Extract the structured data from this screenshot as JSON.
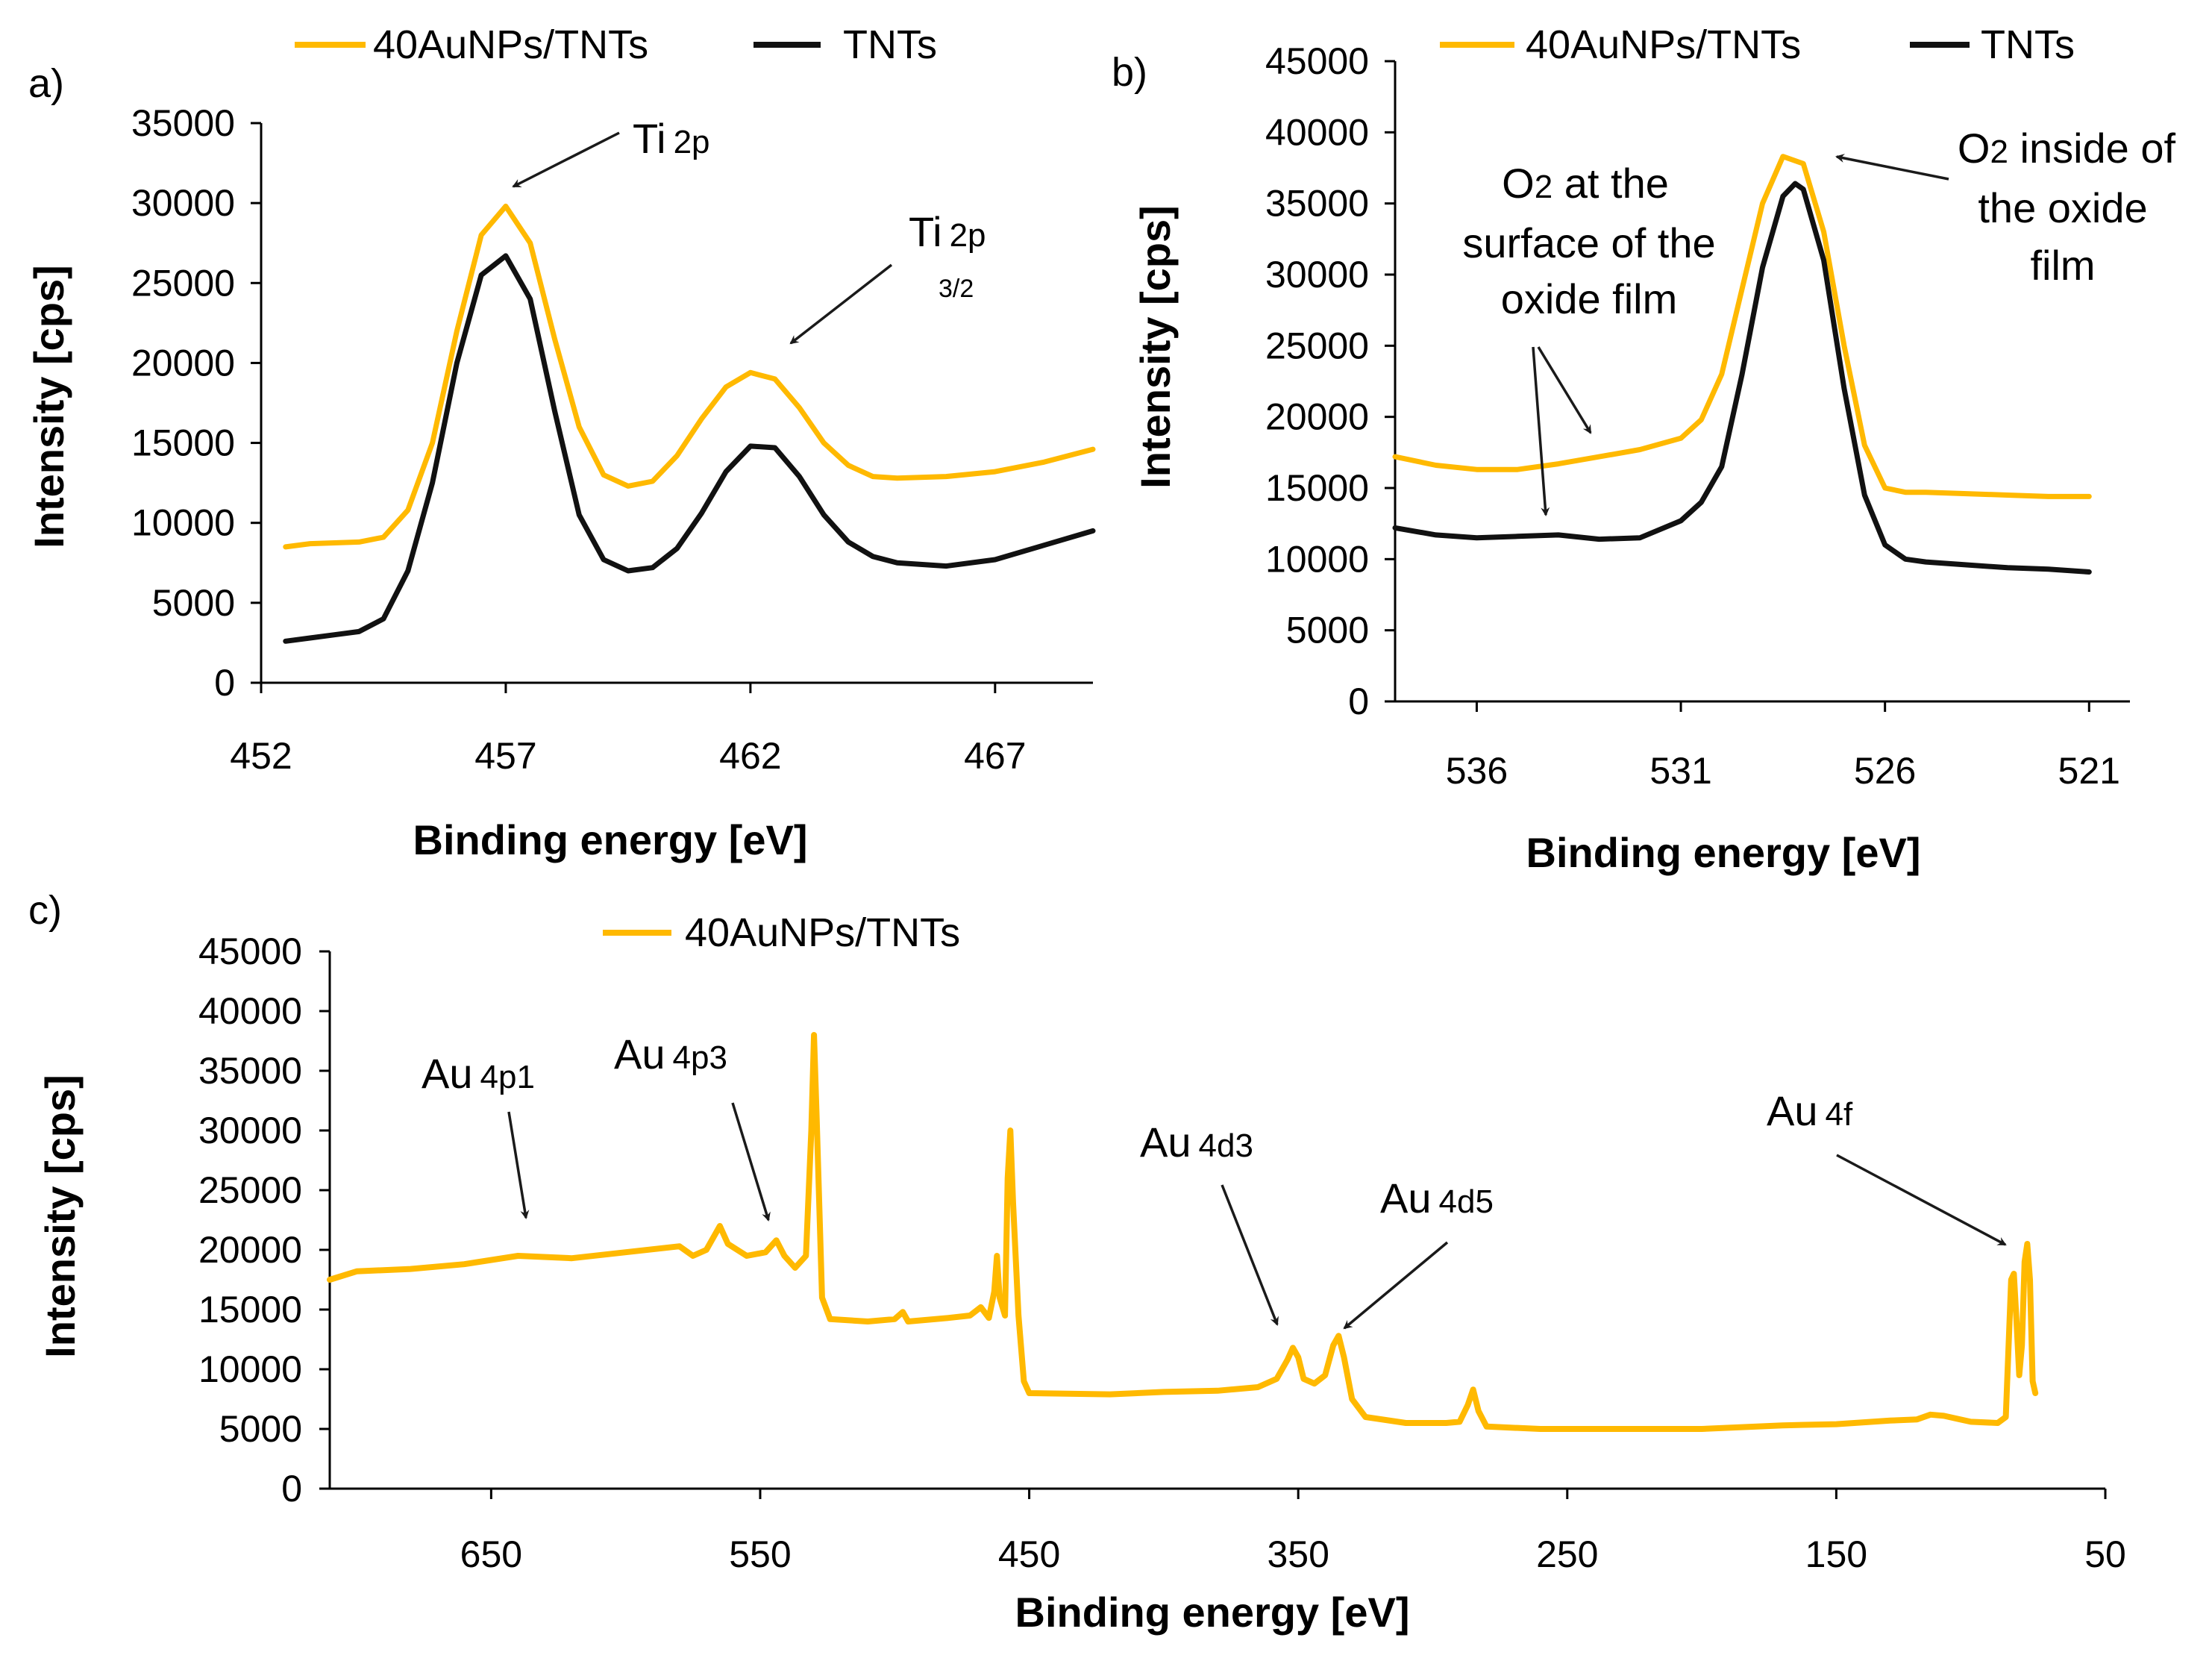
{
  "chart_data": [
    {
      "id": "a",
      "type": "line",
      "panel_label": "a)",
      "xlabel": "Binding energy [eV]",
      "ylabel": "Intensity [cps]",
      "xlim": [
        452,
        469
      ],
      "ylim": [
        0,
        35000
      ],
      "x_ticks": [
        452,
        457,
        462,
        467
      ],
      "y_ticks": [
        0,
        5000,
        10000,
        15000,
        20000,
        25000,
        30000,
        35000
      ],
      "legend": [
        "40AuNPs/TNTs",
        "TNTs"
      ],
      "colors": {
        "40AuNPs/TNTs": "#FFB900",
        "TNTs": "#111111"
      },
      "series": [
        {
          "name": "40AuNPs/TNTs",
          "points": [
            [
              452.5,
              8500
            ],
            [
              453,
              8700
            ],
            [
              454,
              8800
            ],
            [
              454.5,
              9100
            ],
            [
              455,
              10800
            ],
            [
              455.5,
              15000
            ],
            [
              456,
              22000
            ],
            [
              456.5,
              28000
            ],
            [
              457,
              29800
            ],
            [
              457.5,
              27500
            ],
            [
              458,
              21500
            ],
            [
              458.5,
              16000
            ],
            [
              459,
              13000
            ],
            [
              459.5,
              12300
            ],
            [
              460,
              12600
            ],
            [
              460.5,
              14200
            ],
            [
              461,
              16500
            ],
            [
              461.5,
              18500
            ],
            [
              462,
              19400
            ],
            [
              462.5,
              19000
            ],
            [
              463,
              17200
            ],
            [
              463.5,
              15000
            ],
            [
              464,
              13600
            ],
            [
              464.5,
              12900
            ],
            [
              465,
              12800
            ],
            [
              466,
              12900
            ],
            [
              467,
              13200
            ],
            [
              468,
              13800
            ],
            [
              469,
              14600
            ]
          ]
        },
        {
          "name": "TNTs",
          "points": [
            [
              452.5,
              2600
            ],
            [
              453,
              2800
            ],
            [
              453.5,
              3000
            ],
            [
              454,
              3200
            ],
            [
              454.5,
              4000
            ],
            [
              455,
              7000
            ],
            [
              455.5,
              12500
            ],
            [
              456,
              20000
            ],
            [
              456.5,
              25500
            ],
            [
              457,
              26700
            ],
            [
              457.5,
              24000
            ],
            [
              458,
              17000
            ],
            [
              458.5,
              10500
            ],
            [
              459,
              7700
            ],
            [
              459.5,
              7000
            ],
            [
              460,
              7200
            ],
            [
              460.5,
              8400
            ],
            [
              461,
              10600
            ],
            [
              461.5,
              13200
            ],
            [
              462,
              14800
            ],
            [
              462.5,
              14700
            ],
            [
              463,
              12900
            ],
            [
              463.5,
              10500
            ],
            [
              464,
              8800
            ],
            [
              464.5,
              7900
            ],
            [
              465,
              7500
            ],
            [
              466,
              7300
            ],
            [
              467,
              7700
            ],
            [
              468,
              8600
            ],
            [
              469,
              9500
            ]
          ]
        }
      ],
      "annotations": [
        {
          "main": "Ti",
          "sub": "2p",
          "sub2": ""
        },
        {
          "main": "Ti",
          "sub": "2p",
          "sub2": "3/2"
        }
      ]
    },
    {
      "id": "b",
      "type": "line",
      "panel_label": "b)",
      "xlabel": "Binding energy [eV]",
      "ylabel": "Intensity [cps]",
      "xlim": [
        538,
        520
      ],
      "x_reversed": true,
      "ylim": [
        0,
        45000
      ],
      "x_ticks": [
        536,
        531,
        526,
        521
      ],
      "y_ticks": [
        0,
        5000,
        10000,
        15000,
        20000,
        25000,
        30000,
        35000,
        40000,
        45000
      ],
      "legend": [
        "40AuNPs/TNTs",
        "TNTs"
      ],
      "colors": {
        "40AuNPs/TNTs": "#FFB900",
        "TNTs": "#111111"
      },
      "series": [
        {
          "name": "40AuNPs/TNTs",
          "points": [
            [
              538,
              17200
            ],
            [
              537,
              16600
            ],
            [
              536,
              16300
            ],
            [
              535,
              16300
            ],
            [
              534,
              16700
            ],
            [
              533,
              17200
            ],
            [
              532,
              17700
            ],
            [
              531,
              18500
            ],
            [
              530.5,
              19800
            ],
            [
              530,
              23000
            ],
            [
              529.5,
              29000
            ],
            [
              529,
              35000
            ],
            [
              528.5,
              38300
            ],
            [
              528,
              37800
            ],
            [
              527.5,
              33000
            ],
            [
              527,
              25000
            ],
            [
              526.5,
              18000
            ],
            [
              526,
              15000
            ],
            [
              525.5,
              14700
            ],
            [
              525,
              14700
            ],
            [
              524,
              14600
            ],
            [
              523,
              14500
            ],
            [
              522,
              14400
            ],
            [
              521,
              14400
            ]
          ]
        },
        {
          "name": "TNTs",
          "points": [
            [
              538,
              12200
            ],
            [
              537,
              11700
            ],
            [
              536,
              11500
            ],
            [
              535,
              11600
            ],
            [
              534,
              11700
            ],
            [
              533,
              11400
            ],
            [
              532,
              11500
            ],
            [
              531,
              12700
            ],
            [
              530.5,
              14000
            ],
            [
              530,
              16500
            ],
            [
              529.5,
              23000
            ],
            [
              529,
              30500
            ],
            [
              528.5,
              35500
            ],
            [
              528.2,
              36400
            ],
            [
              528,
              36000
            ],
            [
              527.5,
              31000
            ],
            [
              527,
              22000
            ],
            [
              526.5,
              14500
            ],
            [
              526,
              11000
            ],
            [
              525.5,
              10000
            ],
            [
              525,
              9800
            ],
            [
              524,
              9600
            ],
            [
              523,
              9400
            ],
            [
              522,
              9300
            ],
            [
              521,
              9100
            ]
          ]
        }
      ],
      "annotations": [
        {
          "line1_main": "O",
          "line1_sub": "2",
          "line1_rest": " at the",
          "line2": "surface of the",
          "line3": "oxide film"
        },
        {
          "line1_main": "O",
          "line1_sub": "2",
          "line1_rest": " inside of",
          "line2": "the oxide",
          "line3": "film"
        }
      ]
    },
    {
      "id": "c",
      "type": "line",
      "panel_label": "c)",
      "xlabel": "Binding energy [eV]",
      "ylabel": "Intensity [cps]",
      "xlim": [
        710,
        50
      ],
      "x_reversed": true,
      "ylim": [
        0,
        45000
      ],
      "x_ticks": [
        650,
        550,
        450,
        350,
        250,
        150,
        50
      ],
      "y_ticks": [
        0,
        5000,
        10000,
        15000,
        20000,
        25000,
        30000,
        35000,
        40000,
        45000
      ],
      "legend": [
        "40AuNPs/TNTs"
      ],
      "colors": {
        "40AuNPs/TNTs": "#FFB900"
      },
      "series": [
        {
          "name": "40AuNPs/TNTs",
          "points": [
            [
              710,
              17500
            ],
            [
              700,
              18200
            ],
            [
              680,
              18400
            ],
            [
              660,
              18800
            ],
            [
              640,
              19500
            ],
            [
              620,
              19300
            ],
            [
              600,
              19800
            ],
            [
              580,
              20300
            ],
            [
              575,
              19500
            ],
            [
              570,
              20000
            ],
            [
              565,
              22000
            ],
            [
              562,
              20500
            ],
            [
              555,
              19500
            ],
            [
              548,
              19800
            ],
            [
              544,
              20800
            ],
            [
              541,
              19500
            ],
            [
              537,
              18500
            ],
            [
              533,
              19500
            ],
            [
              531,
              30000
            ],
            [
              530,
              38000
            ],
            [
              529,
              31000
            ],
            [
              527,
              16000
            ],
            [
              524,
              14200
            ],
            [
              510,
              14000
            ],
            [
              500,
              14200
            ],
            [
              497,
              14800
            ],
            [
              495,
              14000
            ],
            [
              480,
              14300
            ],
            [
              472,
              14500
            ],
            [
              468,
              15200
            ],
            [
              465,
              14300
            ],
            [
              463,
              16500
            ],
            [
              462,
              19500
            ],
            [
              461,
              16000
            ],
            [
              459,
              14500
            ],
            [
              458,
              26000
            ],
            [
              457,
              30000
            ],
            [
              456,
              24000
            ],
            [
              454,
              14500
            ],
            [
              452,
              9000
            ],
            [
              450,
              8000
            ],
            [
              420,
              7900
            ],
            [
              400,
              8100
            ],
            [
              380,
              8200
            ],
            [
              365,
              8500
            ],
            [
              358,
              9200
            ],
            [
              354,
              10800
            ],
            [
              352,
              11800
            ],
            [
              350,
              11000
            ],
            [
              348,
              9200
            ],
            [
              344,
              8800
            ],
            [
              340,
              9500
            ],
            [
              337,
              12000
            ],
            [
              335,
              12800
            ],
            [
              333,
              11000
            ],
            [
              330,
              7500
            ],
            [
              325,
              6000
            ],
            [
              310,
              5500
            ],
            [
              295,
              5500
            ],
            [
              290,
              5600
            ],
            [
              287,
              7000
            ],
            [
              285,
              8300
            ],
            [
              283,
              6500
            ],
            [
              280,
              5200
            ],
            [
              260,
              5000
            ],
            [
              240,
              5000
            ],
            [
              200,
              5000
            ],
            [
              170,
              5300
            ],
            [
              150,
              5400
            ],
            [
              130,
              5700
            ],
            [
              120,
              5800
            ],
            [
              115,
              6200
            ],
            [
              110,
              6100
            ],
            [
              100,
              5600
            ],
            [
              90,
              5500
            ],
            [
              87,
              6000
            ],
            [
              85,
              17500
            ],
            [
              84,
              18000
            ],
            [
              83,
              14000
            ],
            [
              82,
              9500
            ],
            [
              81,
              12000
            ],
            [
              80,
              19000
            ],
            [
              79,
              20500
            ],
            [
              78,
              17500
            ],
            [
              77,
              9000
            ],
            [
              76,
              8000
            ]
          ]
        }
      ],
      "annotations": [
        {
          "main": "Au",
          "sub": "4p1"
        },
        {
          "main": "Au",
          "sub": "4p3"
        },
        {
          "main": "Au",
          "sub": "4d3"
        },
        {
          "main": "Au",
          "sub": "4d5"
        },
        {
          "main": "Au",
          "sub": "4f"
        }
      ]
    }
  ]
}
